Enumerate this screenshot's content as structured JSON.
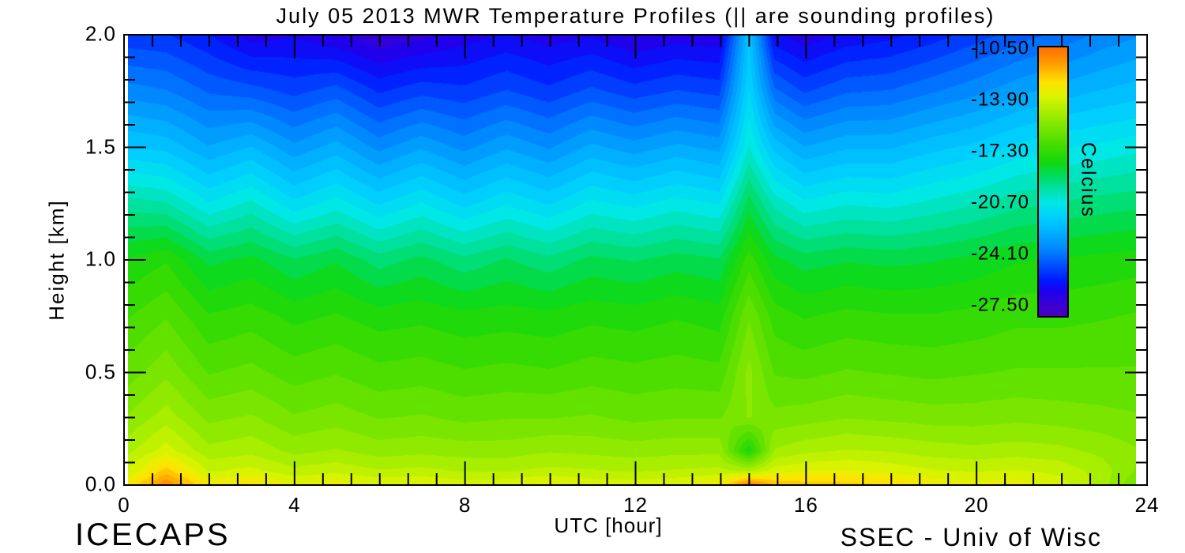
{
  "title": "July 05 2013 MWR Temperature Profiles (|| are sounding profiles)",
  "axes": {
    "xlabel": "UTC [hour]",
    "ylabel": "Height [km]",
    "x_tick_labels": [
      "0",
      "4",
      "8",
      "12",
      "16",
      "20",
      "24"
    ],
    "y_tick_labels": [
      "0.0",
      "0.5",
      "1.0",
      "1.5",
      "2.0"
    ]
  },
  "colorbar": {
    "label": "Celcius",
    "tick_labels": [
      "-10.50",
      "-13.90",
      "-17.30",
      "-20.70",
      "-24.10",
      "-27.50"
    ],
    "tick_values": [
      -10.5,
      -13.9,
      -17.3,
      -20.7,
      -24.1,
      -27.5
    ]
  },
  "branding": {
    "left": "ICECAPS",
    "right": "SSEC - Univ of Wisc"
  },
  "chart_data": {
    "type": "heatmap",
    "title": "July 05 2013 MWR Temperature Profiles (|| are sounding profiles)",
    "xlabel": "UTC [hour]",
    "ylabel": "Height [km]",
    "units": "Celcius",
    "xlim": [
      0,
      24
    ],
    "ylim": [
      0.0,
      2.0
    ],
    "x_ticks": [
      0,
      4,
      8,
      12,
      16,
      20,
      24
    ],
    "y_ticks": [
      0.0,
      0.5,
      1.0,
      1.5,
      2.0
    ],
    "x_minor_interval_hours": 0.6667,
    "y_minor_interval_km": 0.1,
    "value_range_c": [
      -28.1,
      -10.3
    ],
    "contour_step_c": 0.5,
    "sounding_profile_hours": [
      1.0,
      14.7
    ],
    "x_hours": [
      0.1,
      1,
      2,
      3,
      4,
      5,
      6,
      7,
      8,
      9,
      10,
      11,
      12,
      13,
      14,
      14.7,
      15.3,
      16,
      17,
      18,
      19,
      20,
      21,
      22,
      23,
      23.8
    ],
    "heights_km": [
      0.0,
      0.06,
      0.15,
      0.3,
      0.5,
      0.75,
      1.0,
      1.25,
      1.5,
      1.75,
      2.0
    ],
    "temperature_c": [
      [
        -12.9,
        -10.9,
        -13.0,
        -12.6,
        -13.3,
        -13.1,
        -13.4,
        -13.3,
        -13.6,
        -13.5,
        -13.2,
        -13.5,
        -13.6,
        -13.4,
        -13.0,
        -10.7,
        -11.9,
        -12.1,
        -12.2,
        -12.4,
        -13.0,
        -13.2,
        -13.1,
        -13.6,
        -14.6,
        -15.8
      ],
      [
        -13.8,
        -12.1,
        -13.9,
        -13.7,
        -14.2,
        -14.0,
        -14.3,
        -14.2,
        -14.4,
        -14.4,
        -14.2,
        -14.3,
        -14.4,
        -14.3,
        -14.2,
        -14.4,
        -13.6,
        -13.4,
        -13.3,
        -13.5,
        -13.8,
        -13.9,
        -13.8,
        -14.0,
        -14.6,
        -15.4
      ],
      [
        -14.5,
        -13.6,
        -14.7,
        -14.5,
        -15.0,
        -14.8,
        -15.1,
        -15.0,
        -15.1,
        -15.1,
        -14.9,
        -15.0,
        -15.1,
        -15.0,
        -15.0,
        -17.8,
        -14.8,
        -14.5,
        -14.3,
        -14.4,
        -14.6,
        -14.7,
        -14.6,
        -14.7,
        -15.0,
        -15.3
      ],
      [
        -15.3,
        -14.6,
        -15.5,
        -15.3,
        -15.8,
        -15.6,
        -15.9,
        -15.8,
        -16.0,
        -15.9,
        -15.9,
        -15.8,
        -16.0,
        -15.9,
        -15.9,
        -15.3,
        -15.7,
        -15.6,
        -15.4,
        -15.5,
        -15.6,
        -15.6,
        -15.5,
        -15.6,
        -15.7,
        -15.8
      ],
      [
        -16.1,
        -15.5,
        -16.4,
        -16.2,
        -16.6,
        -16.4,
        -16.7,
        -16.6,
        -16.8,
        -16.7,
        -16.8,
        -16.6,
        -16.7,
        -16.6,
        -16.7,
        -15.2,
        -16.4,
        -16.5,
        -16.3,
        -16.4,
        -16.5,
        -16.4,
        -16.3,
        -16.3,
        -16.3,
        -16.3
      ],
      [
        -16.9,
        -16.4,
        -17.3,
        -17.1,
        -17.5,
        -17.3,
        -17.6,
        -17.5,
        -17.7,
        -17.6,
        -17.7,
        -17.5,
        -17.6,
        -17.4,
        -17.6,
        -15.9,
        -17.1,
        -17.4,
        -17.2,
        -17.3,
        -17.3,
        -17.2,
        -17.0,
        -17.0,
        -16.9,
        -16.8
      ],
      [
        -17.8,
        -17.4,
        -18.5,
        -18.2,
        -18.8,
        -18.4,
        -19.1,
        -18.7,
        -19.2,
        -18.8,
        -19.2,
        -18.7,
        -18.9,
        -18.6,
        -18.8,
        -17.1,
        -18.2,
        -18.6,
        -18.4,
        -18.5,
        -18.4,
        -18.2,
        -17.9,
        -17.8,
        -17.7,
        -17.6
      ],
      [
        -19.6,
        -19.8,
        -20.8,
        -20.2,
        -21.2,
        -20.6,
        -21.4,
        -20.8,
        -21.5,
        -20.9,
        -21.4,
        -20.7,
        -21.0,
        -20.6,
        -20.9,
        -18.6,
        -20.0,
        -20.7,
        -20.4,
        -20.5,
        -20.2,
        -19.9,
        -19.5,
        -19.3,
        -19.1,
        -19.0
      ],
      [
        -21.8,
        -22.0,
        -22.8,
        -22.3,
        -23.2,
        -22.6,
        -23.5,
        -22.9,
        -23.5,
        -22.9,
        -23.4,
        -22.7,
        -23.1,
        -22.7,
        -23.0,
        -20.3,
        -22.0,
        -22.8,
        -22.4,
        -22.4,
        -22.0,
        -21.7,
        -21.2,
        -20.9,
        -20.7,
        -20.5
      ],
      [
        -23.6,
        -23.8,
        -24.4,
        -24.6,
        -25.0,
        -24.6,
        -25.4,
        -25.0,
        -25.2,
        -24.8,
        -25.2,
        -24.7,
        -25.1,
        -24.8,
        -25.0,
        -21.3,
        -24.2,
        -24.9,
        -24.4,
        -24.3,
        -23.9,
        -23.5,
        -23.0,
        -22.6,
        -22.3,
        -22.1
      ],
      [
        -25.2,
        -25.3,
        -25.8,
        -26.6,
        -26.4,
        -26.8,
        -27.3,
        -27.0,
        -26.6,
        -26.3,
        -26.6,
        -26.4,
        -26.9,
        -26.6,
        -26.7,
        -21.9,
        -26.2,
        -26.7,
        -26.2,
        -26.0,
        -25.6,
        -25.1,
        -24.6,
        -24.2,
        -23.7,
        -23.4
      ]
    ],
    "colormap": {
      "stops": [
        [
          0.0,
          "#4800C0"
        ],
        [
          0.04,
          "#3C00D4"
        ],
        [
          0.09,
          "#1E00EE"
        ],
        [
          0.13,
          "#0018FF"
        ],
        [
          0.18,
          "#0048FF"
        ],
        [
          0.24,
          "#0080FF"
        ],
        [
          0.3,
          "#00AAFF"
        ],
        [
          0.36,
          "#00CCFF"
        ],
        [
          0.42,
          "#00E8E8"
        ],
        [
          0.47,
          "#00E2A8"
        ],
        [
          0.52,
          "#00DC60"
        ],
        [
          0.57,
          "#10D810"
        ],
        [
          0.63,
          "#40DC00"
        ],
        [
          0.7,
          "#78E600"
        ],
        [
          0.76,
          "#A8EE00"
        ],
        [
          0.82,
          "#DCF400"
        ],
        [
          0.87,
          "#FFE400"
        ],
        [
          0.91,
          "#FFBC00"
        ],
        [
          0.95,
          "#FF9400"
        ],
        [
          1.0,
          "#FF7000"
        ]
      ]
    },
    "legend_position": "right-inside",
    "grid": false
  }
}
